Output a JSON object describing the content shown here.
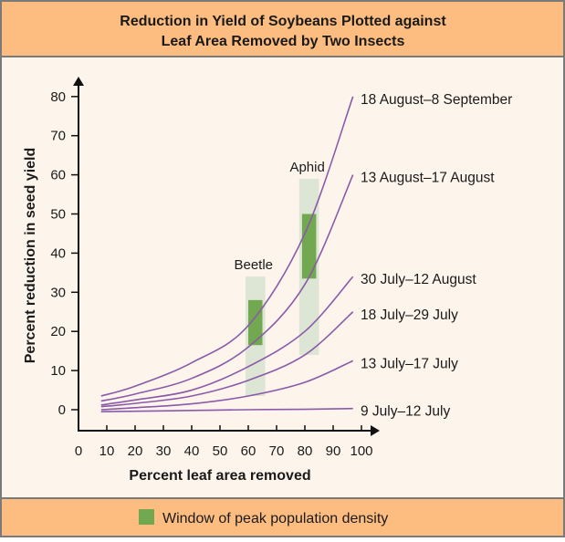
{
  "chart_data": {
    "type": "line",
    "title": "Reduction in Yield of Soybeans Plotted against Leaf Area Removed by Two Insects",
    "title_lines": [
      "Reduction in Yield of Soybeans Plotted against",
      "Leaf Area Removed by Two Insects"
    ],
    "xlabel": "Percent leaf area removed",
    "ylabel": "Percent reduction in seed yield",
    "xlim": [
      0,
      100
    ],
    "ylim": [
      -5,
      85
    ],
    "x_ticks": [
      0,
      10,
      20,
      30,
      40,
      50,
      60,
      70,
      80,
      90,
      100
    ],
    "y_ticks": [
      0,
      10,
      20,
      30,
      40,
      50,
      60,
      70,
      80
    ],
    "grid": false,
    "series_color": "#8a5aa8",
    "x": [
      8,
      20,
      40,
      60,
      80,
      97
    ],
    "series": [
      {
        "name": "18 August–8 September",
        "values": [
          3.5,
          6,
          12,
          21.5,
          45,
          80
        ]
      },
      {
        "name": "13 August–17 August",
        "values": [
          2.2,
          4,
          8,
          16,
          32,
          60
        ]
      },
      {
        "name": "30 July–12 August",
        "values": [
          1.2,
          2.5,
          5,
          11,
          20,
          34
        ]
      },
      {
        "name": "18 July–29 July",
        "values": [
          0.8,
          1.6,
          3.5,
          7.5,
          14,
          25
        ]
      },
      {
        "name": "13 July–17 July",
        "values": [
          0,
          0.5,
          1.5,
          3.5,
          7,
          12.5
        ]
      },
      {
        "name": "9 July–12 July",
        "values": [
          -0.5,
          -0.4,
          -0.2,
          0,
          0.1,
          0.3
        ]
      }
    ],
    "insect_windows": [
      {
        "label": "Beetle",
        "x_range": [
          59,
          66
        ],
        "y_range": [
          3.5,
          34
        ],
        "peak_x_range": [
          60,
          65
        ],
        "peak_y_range": [
          16.5,
          28
        ]
      },
      {
        "label": "Aphid",
        "x_range": [
          78,
          85
        ],
        "y_range": [
          14,
          59
        ],
        "peak_x_range": [
          79,
          84
        ],
        "peak_y_range": [
          33.5,
          50
        ]
      }
    ],
    "window_color": "#dde5d4",
    "peak_color": "#72a84f",
    "legend": {
      "label": "Window of peak population density",
      "position": "bottom"
    }
  },
  "colors": {
    "band": "#fdbd80",
    "panel": "#fdf5ec",
    "border": "#7a7a7a"
  }
}
